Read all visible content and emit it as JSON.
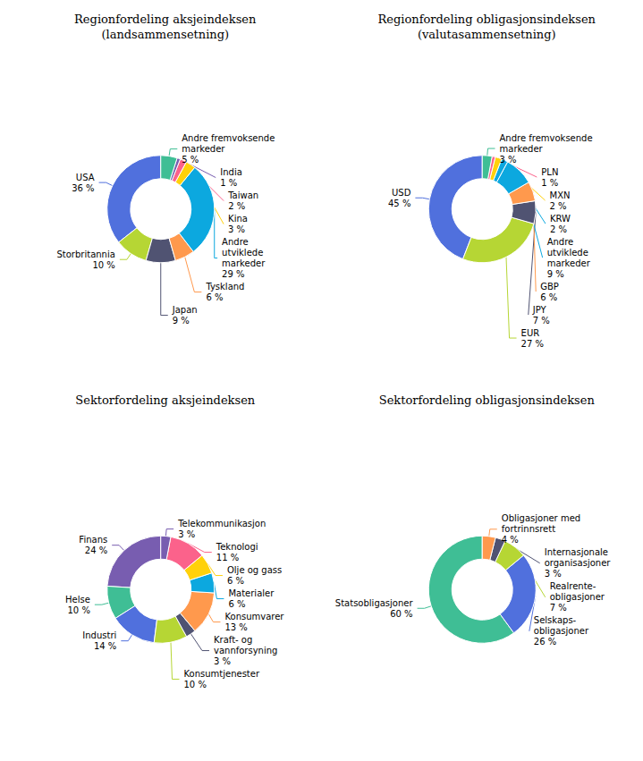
{
  "chart_data": [
    {
      "type": "pie",
      "title": "Regionfordeling aksjeindeksen\n(landsammensetning)",
      "categories": [
        "USA",
        "Storbritannia",
        "Japan",
        "Tyskland",
        "Andre\nutviklede\nmarkeder",
        "Kina",
        "Taiwan",
        "India",
        "Andre fremvoksende\nmarkeder"
      ],
      "values": [
        36,
        10,
        9,
        6,
        29,
        3,
        2,
        1,
        5
      ],
      "value_labels": [
        "36 %",
        "10 %",
        "9 %",
        "6 %",
        "29 %",
        "3 %",
        "2 %",
        "1 %",
        "5 %"
      ],
      "data_labels": true
    },
    {
      "type": "pie",
      "title": "Regionfordeling obligasjonsindeksen\n(valutasammensetning)",
      "categories": [
        "USD",
        "EUR",
        "JPY",
        "GBP",
        "Andre\nutviklede\nmarkeder",
        "KRW",
        "MXN",
        "PLN",
        "Andre fremvoksende\nmarkeder"
      ],
      "values": [
        45,
        27,
        7,
        6,
        9,
        2,
        2,
        1,
        3
      ],
      "value_labels": [
        "45 %",
        "27 %",
        "7 %",
        "6 %",
        "9 %",
        "2 %",
        "2 %",
        "1 %",
        "3 %"
      ],
      "data_labels": true
    },
    {
      "type": "pie",
      "title": "Sektorfordeling aksjeindeksen",
      "categories": [
        "Finans",
        "Helse",
        "Industri",
        "Konsumtjenester",
        "Kraft- og\nvannforsyning",
        "Konsumvarer",
        "Materialer",
        "Olje og gass",
        "Teknologi",
        "Telekommunikasjon"
      ],
      "values": [
        24,
        10,
        14,
        10,
        3,
        13,
        6,
        6,
        11,
        3
      ],
      "value_labels": [
        "24 %",
        "10 %",
        "14 %",
        "10 %",
        "3 %",
        "13 %",
        "6 %",
        "6 %",
        "11 %",
        "3 %"
      ],
      "data_labels": true
    },
    {
      "type": "pie",
      "title": "Sektorfordeling obligasjonsindeksen",
      "categories": [
        "Statsobligasjoner",
        "Selskaps-\nobligasjoner",
        "Realrente-\nobligasjoner",
        "Internasjonale\norganisasjoner",
        "Obligasjoner med\nfortrinnsrett"
      ],
      "values": [
        60,
        26,
        7,
        3,
        4
      ],
      "value_labels": [
        "60 %",
        "26 %",
        "7 %",
        "3 %",
        "4 %"
      ],
      "data_labels": true
    }
  ]
}
